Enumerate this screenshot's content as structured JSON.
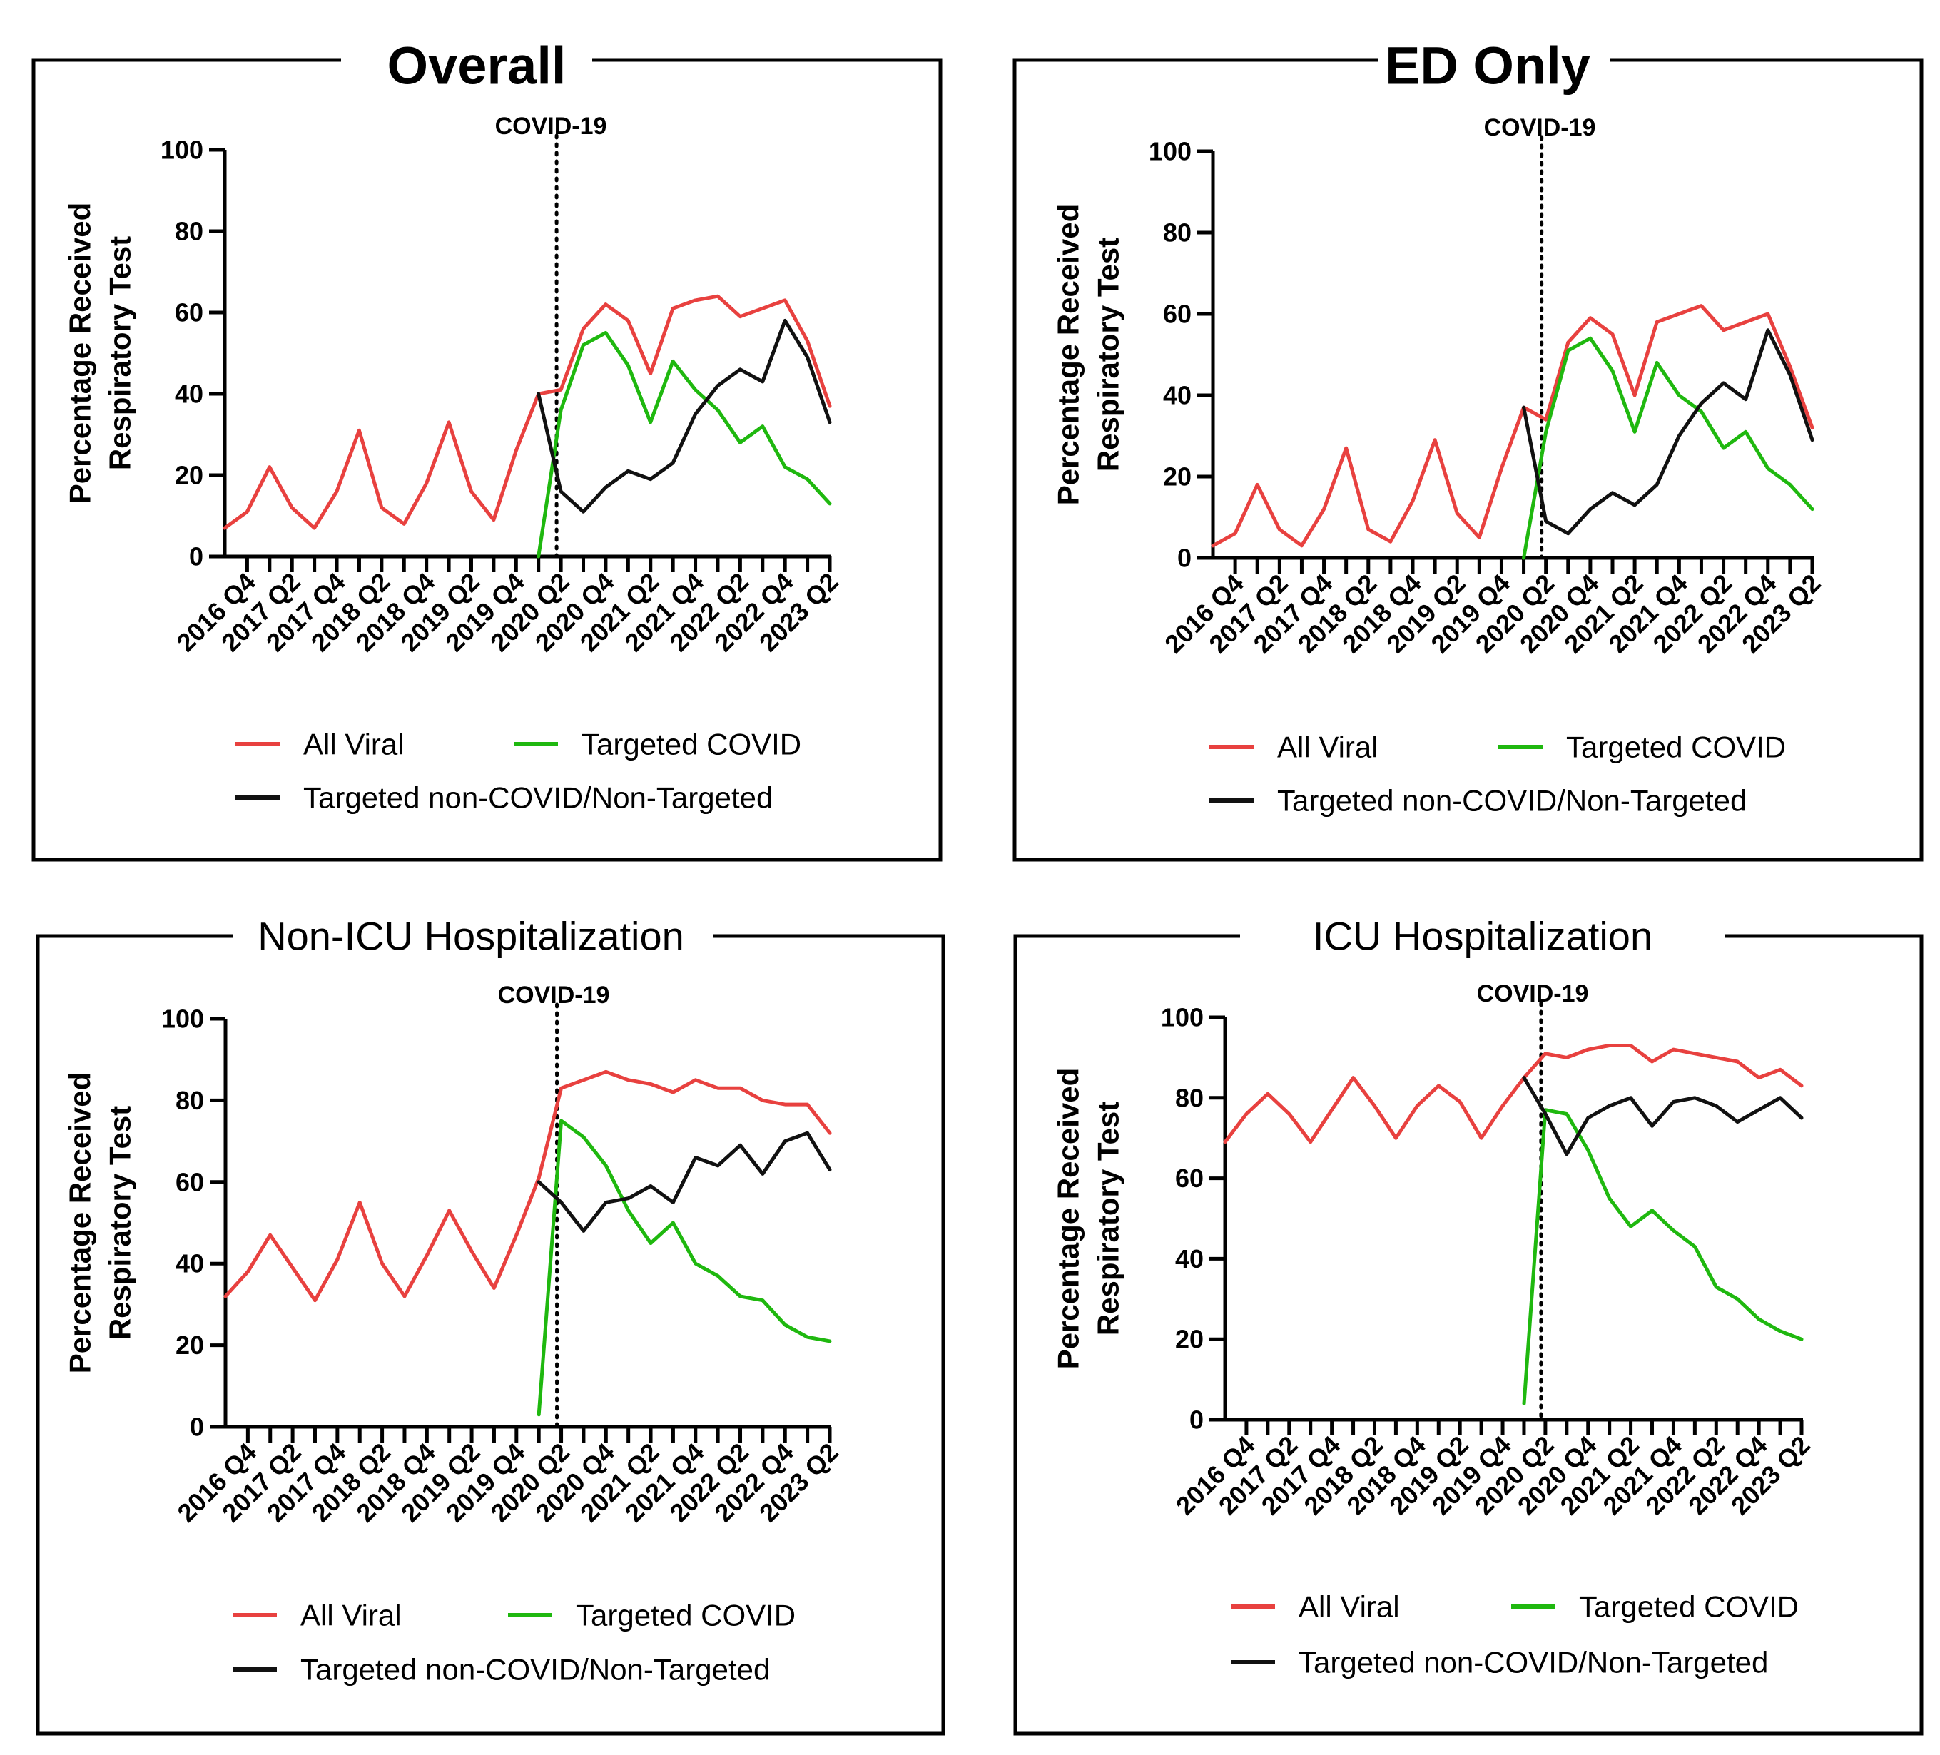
{
  "series_names": [
    "All Viral",
    "Targeted COVID",
    "Targeted non-COVID/Non-Targeted"
  ],
  "series_colors": [
    "#e8413f",
    "#1fb80f",
    "#111111"
  ],
  "covid_label": "COVID-19",
  "ylabel_lines": [
    "Percentage Received",
    "Respiratory Test"
  ],
  "chart_data": [
    {
      "type": "line",
      "title": "Overall",
      "ylabel": "Percentage Received Respiratory Test",
      "ylim": [
        0,
        100
      ],
      "yticks": [
        "0",
        "20",
        "40",
        "60",
        "80",
        "100"
      ],
      "xticks": [
        "2016 Q4",
        "2017 Q2",
        "2017 Q4",
        "2018 Q2",
        "2018 Q4",
        "2019 Q2",
        "2019 Q4",
        "2020 Q2",
        "2020 Q4",
        "2021 Q2",
        "2021 Q4",
        "2022 Q2",
        "2022 Q4",
        "2023 Q2"
      ],
      "x_range": [
        "2016 Q3",
        "2023 Q2"
      ],
      "event_line_x": "2020 Q2",
      "series": [
        {
          "name": "All Viral",
          "x": [
            "2016 Q3",
            "2016 Q4",
            "2017 Q1",
            "2017 Q2",
            "2017 Q3",
            "2017 Q4",
            "2018 Q1",
            "2018 Q2",
            "2018 Q3",
            "2018 Q4",
            "2019 Q1",
            "2019 Q2",
            "2019 Q3",
            "2019 Q4",
            "2020 Q1",
            "2020 Q2",
            "2020 Q3",
            "2020 Q4",
            "2021 Q1",
            "2021 Q2",
            "2021 Q3",
            "2021 Q4",
            "2022 Q1",
            "2022 Q2",
            "2022 Q3",
            "2022 Q4",
            "2023 Q1",
            "2023 Q2"
          ],
          "values": [
            7,
            11,
            22,
            12,
            7,
            16,
            31,
            12,
            8,
            18,
            33,
            16,
            9,
            26,
            40,
            41,
            56,
            62,
            58,
            45,
            61,
            63,
            64,
            59,
            61,
            63,
            53,
            37
          ]
        },
        {
          "name": "Targeted COVID",
          "x": [
            "2020 Q1",
            "2020 Q2",
            "2020 Q3",
            "2020 Q4",
            "2021 Q1",
            "2021 Q2",
            "2021 Q3",
            "2021 Q4",
            "2022 Q1",
            "2022 Q2",
            "2022 Q3",
            "2022 Q4",
            "2023 Q1",
            "2023 Q2"
          ],
          "values": [
            0,
            36,
            52,
            55,
            47,
            33,
            48,
            41,
            36,
            28,
            32,
            22,
            19,
            13
          ]
        },
        {
          "name": "Targeted non-COVID/Non-Targeted",
          "x": [
            "2020 Q1",
            "2020 Q2",
            "2020 Q3",
            "2020 Q4",
            "2021 Q1",
            "2021 Q2",
            "2021 Q3",
            "2021 Q4",
            "2022 Q1",
            "2022 Q2",
            "2022 Q3",
            "2022 Q4",
            "2023 Q1",
            "2023 Q2"
          ],
          "values": [
            40,
            16,
            11,
            17,
            21,
            19,
            23,
            35,
            42,
            46,
            43,
            58,
            49,
            33
          ]
        }
      ]
    },
    {
      "type": "line",
      "title": "ED Only",
      "ylabel": "Percentage Received Respiratory Test",
      "ylim": [
        0,
        100
      ],
      "yticks": [
        "0",
        "20",
        "40",
        "60",
        "80",
        "100"
      ],
      "xticks": [
        "2016 Q4",
        "2017 Q2",
        "2017 Q4",
        "2018 Q2",
        "2018 Q4",
        "2019 Q2",
        "2019 Q4",
        "2020 Q2",
        "2020 Q4",
        "2021 Q2",
        "2021 Q4",
        "2022 Q2",
        "2022 Q4",
        "2023 Q2"
      ],
      "x_range": [
        "2016 Q3",
        "2023 Q2"
      ],
      "event_line_x": "2020 Q2",
      "series": [
        {
          "name": "All Viral",
          "x": [
            "2016 Q3",
            "2016 Q4",
            "2017 Q1",
            "2017 Q2",
            "2017 Q3",
            "2017 Q4",
            "2018 Q1",
            "2018 Q2",
            "2018 Q3",
            "2018 Q4",
            "2019 Q1",
            "2019 Q2",
            "2019 Q3",
            "2019 Q4",
            "2020 Q1",
            "2020 Q2",
            "2020 Q3",
            "2020 Q4",
            "2021 Q1",
            "2021 Q2",
            "2021 Q3",
            "2021 Q4",
            "2022 Q1",
            "2022 Q2",
            "2022 Q3",
            "2022 Q4",
            "2023 Q1",
            "2023 Q2"
          ],
          "values": [
            3,
            6,
            18,
            7,
            3,
            12,
            27,
            7,
            4,
            14,
            29,
            11,
            5,
            22,
            37,
            34,
            53,
            59,
            55,
            40,
            58,
            60,
            62,
            56,
            58,
            60,
            47,
            32
          ]
        },
        {
          "name": "Targeted COVID",
          "x": [
            "2020 Q1",
            "2020 Q2",
            "2020 Q3",
            "2020 Q4",
            "2021 Q1",
            "2021 Q2",
            "2021 Q3",
            "2021 Q4",
            "2022 Q1",
            "2022 Q2",
            "2022 Q3",
            "2022 Q4",
            "2023 Q1",
            "2023 Q2"
          ],
          "values": [
            0,
            31,
            51,
            54,
            46,
            31,
            48,
            40,
            36,
            27,
            31,
            22,
            18,
            12
          ]
        },
        {
          "name": "Targeted non-COVID/Non-Targeted",
          "x": [
            "2020 Q1",
            "2020 Q2",
            "2020 Q3",
            "2020 Q4",
            "2021 Q1",
            "2021 Q2",
            "2021 Q3",
            "2021 Q4",
            "2022 Q1",
            "2022 Q2",
            "2022 Q3",
            "2022 Q4",
            "2023 Q1",
            "2023 Q2"
          ],
          "values": [
            37,
            9,
            6,
            12,
            16,
            13,
            18,
            30,
            38,
            43,
            39,
            56,
            45,
            29
          ]
        }
      ]
    },
    {
      "type": "line",
      "title": "Non-ICU Hospitalization",
      "ylabel": "Percentage Received Respiratory Test",
      "ylim": [
        0,
        100
      ],
      "yticks": [
        "0",
        "20",
        "40",
        "60",
        "80",
        "100"
      ],
      "xticks": [
        "2016 Q4",
        "2017 Q2",
        "2017 Q4",
        "2018 Q2",
        "2018 Q4",
        "2019 Q2",
        "2019 Q4",
        "2020 Q2",
        "2020 Q4",
        "2021 Q2",
        "2021 Q4",
        "2022 Q2",
        "2022 Q4",
        "2023 Q2"
      ],
      "x_range": [
        "2016 Q3",
        "2023 Q2"
      ],
      "event_line_x": "2020 Q2",
      "series": [
        {
          "name": "All Viral",
          "x": [
            "2016 Q3",
            "2016 Q4",
            "2017 Q1",
            "2017 Q2",
            "2017 Q3",
            "2017 Q4",
            "2018 Q1",
            "2018 Q2",
            "2018 Q3",
            "2018 Q4",
            "2019 Q1",
            "2019 Q2",
            "2019 Q3",
            "2019 Q4",
            "2020 Q1",
            "2020 Q2",
            "2020 Q3",
            "2020 Q4",
            "2021 Q1",
            "2021 Q2",
            "2021 Q3",
            "2021 Q4",
            "2022 Q1",
            "2022 Q2",
            "2022 Q3",
            "2022 Q4",
            "2023 Q1",
            "2023 Q2"
          ],
          "values": [
            32,
            38,
            47,
            39,
            31,
            41,
            55,
            40,
            32,
            42,
            53,
            43,
            34,
            47,
            61,
            83,
            85,
            87,
            85,
            84,
            82,
            85,
            83,
            83,
            80,
            79,
            79,
            72
          ]
        },
        {
          "name": "Targeted COVID",
          "x": [
            "2020 Q1",
            "2020 Q2",
            "2020 Q3",
            "2020 Q4",
            "2021 Q1",
            "2021 Q2",
            "2021 Q3",
            "2021 Q4",
            "2022 Q1",
            "2022 Q2",
            "2022 Q3",
            "2022 Q4",
            "2023 Q1",
            "2023 Q2"
          ],
          "values": [
            3,
            75,
            71,
            64,
            53,
            45,
            50,
            40,
            37,
            32,
            31,
            25,
            22,
            21
          ]
        },
        {
          "name": "Targeted non-COVID/Non-Targeted",
          "x": [
            "2020 Q1",
            "2020 Q2",
            "2020 Q3",
            "2020 Q4",
            "2021 Q1",
            "2021 Q2",
            "2021 Q3",
            "2021 Q4",
            "2022 Q1",
            "2022 Q2",
            "2022 Q3",
            "2022 Q4",
            "2023 Q1",
            "2023 Q2"
          ],
          "values": [
            60,
            55,
            48,
            55,
            56,
            59,
            55,
            66,
            64,
            69,
            62,
            70,
            72,
            63
          ]
        }
      ]
    },
    {
      "type": "line",
      "title": "ICU Hospitalization",
      "ylabel": "Percentage Received Respiratory Test",
      "ylim": [
        0,
        100
      ],
      "yticks": [
        "0",
        "20",
        "40",
        "60",
        "80",
        "100"
      ],
      "xticks": [
        "2016 Q4",
        "2017 Q2",
        "2017 Q4",
        "2018 Q2",
        "2018 Q4",
        "2019 Q2",
        "2019 Q4",
        "2020 Q2",
        "2020 Q4",
        "2021 Q2",
        "2021 Q4",
        "2022 Q2",
        "2022 Q4",
        "2023 Q2"
      ],
      "x_range": [
        "2016 Q3",
        "2023 Q2"
      ],
      "event_line_x": "2020 Q2",
      "series": [
        {
          "name": "All Viral",
          "x": [
            "2016 Q3",
            "2016 Q4",
            "2017 Q1",
            "2017 Q2",
            "2017 Q3",
            "2017 Q4",
            "2018 Q1",
            "2018 Q2",
            "2018 Q3",
            "2018 Q4",
            "2019 Q1",
            "2019 Q2",
            "2019 Q3",
            "2019 Q4",
            "2020 Q1",
            "2020 Q2",
            "2020 Q3",
            "2020 Q4",
            "2021 Q1",
            "2021 Q2",
            "2021 Q3",
            "2021 Q4",
            "2022 Q1",
            "2022 Q2",
            "2022 Q3",
            "2022 Q4",
            "2023 Q1",
            "2023 Q2"
          ],
          "values": [
            69,
            76,
            81,
            76,
            69,
            77,
            85,
            78,
            70,
            78,
            83,
            79,
            70,
            78,
            85,
            91,
            90,
            92,
            93,
            93,
            89,
            92,
            91,
            90,
            89,
            85,
            87,
            83
          ]
        },
        {
          "name": "Targeted COVID",
          "x": [
            "2020 Q1",
            "2020 Q2",
            "2020 Q3",
            "2020 Q4",
            "2021 Q1",
            "2021 Q2",
            "2021 Q3",
            "2021 Q4",
            "2022 Q1",
            "2022 Q2",
            "2022 Q3",
            "2022 Q4",
            "2023 Q1",
            "2023 Q2"
          ],
          "values": [
            4,
            77,
            76,
            67,
            55,
            48,
            52,
            47,
            43,
            33,
            30,
            25,
            22,
            20
          ]
        },
        {
          "name": "Targeted non-COVID/Non-Targeted",
          "x": [
            "2020 Q1",
            "2020 Q2",
            "2020 Q3",
            "2020 Q4",
            "2021 Q1",
            "2021 Q2",
            "2021 Q3",
            "2021 Q4",
            "2022 Q1",
            "2022 Q2",
            "2022 Q3",
            "2022 Q4",
            "2023 Q1",
            "2023 Q2"
          ],
          "values": [
            85,
            76,
            66,
            75,
            78,
            80,
            73,
            79,
            80,
            78,
            74,
            77,
            80,
            75
          ]
        }
      ]
    }
  ]
}
